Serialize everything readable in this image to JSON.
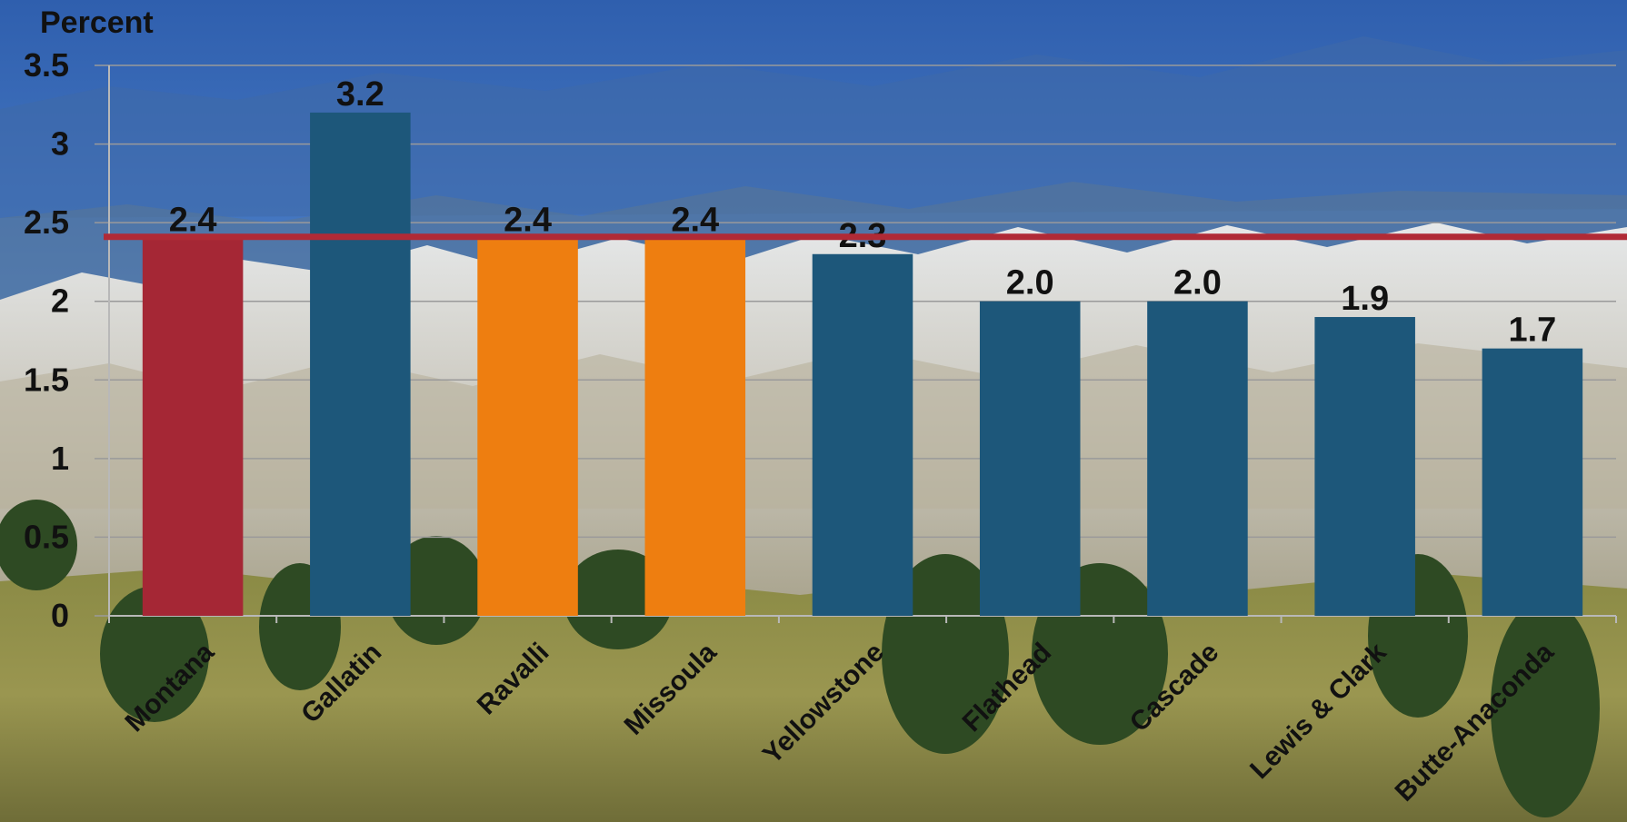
{
  "chart_data": {
    "type": "bar",
    "ylabel": "Percent",
    "ylim": [
      0,
      3.5
    ],
    "yticks": [
      "0",
      "0.5",
      "1",
      "1.5",
      "2",
      "2.5",
      "3",
      "3.5"
    ],
    "ytick_values": [
      0,
      0.5,
      1,
      1.5,
      2,
      2.5,
      3,
      3.5
    ],
    "grid": true,
    "categories": [
      "Montana",
      "Gallatin",
      "Ravalli",
      "Missoula",
      "Yellowstone",
      "Flathead",
      "Cascade",
      "Lewis & Clark",
      "Butte-Anaconda"
    ],
    "values": [
      2.4,
      3.2,
      2.4,
      2.4,
      2.3,
      2.0,
      2.0,
      1.9,
      1.7
    ],
    "data_labels": [
      "2.4",
      "3.2",
      "2.4",
      "2.4",
      "2.3",
      "2.0",
      "2.0",
      "1.9",
      "1.7"
    ],
    "bar_colors": [
      "#A52735",
      "#1D577A",
      "#EE7E10",
      "#EE7E10",
      "#1D577A",
      "#1D577A",
      "#1D577A",
      "#1D577A",
      "#1D577A"
    ],
    "reference_line": {
      "value": 2.41,
      "color": "#B02A36"
    },
    "gridline_color": "#9a9a9a",
    "axis_color": "#b8b8b8"
  }
}
